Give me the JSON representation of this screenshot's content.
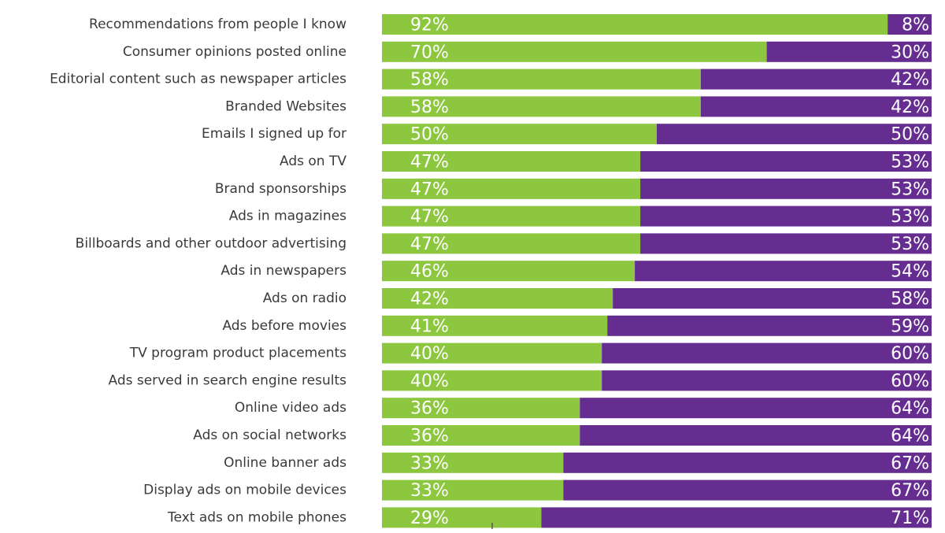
{
  "chart_data": {
    "type": "bar",
    "orientation": "horizontal",
    "stacked": true,
    "value_format": "{v}%",
    "xlim": [
      0,
      100
    ],
    "grid": false,
    "legend": "none",
    "categories": [
      "Recommendations from people I know",
      "Consumer opinions posted online",
      "Editorial content such as newspaper articles",
      "Branded Websites",
      "Emails I signed up for",
      "Ads on TV",
      "Brand sponsorships",
      "Ads in magazines",
      "Billboards and other outdoor advertising",
      "Ads in newspapers",
      "Ads on radio",
      "Ads before movies",
      "TV program product placements",
      "Ads served in search engine results",
      "Online video ads",
      "Ads on social networks",
      "Online banner ads",
      "Display ads on mobile devices",
      "Text ads on mobile phones"
    ],
    "series": [
      {
        "color": "#8dc63f",
        "values": [
          92,
          70,
          58,
          58,
          50,
          47,
          47,
          47,
          47,
          46,
          42,
          41,
          40,
          40,
          36,
          36,
          33,
          33,
          29
        ]
      },
      {
        "color": "#662d91",
        "values": [
          8,
          30,
          42,
          42,
          50,
          53,
          53,
          53,
          53,
          54,
          58,
          59,
          60,
          60,
          64,
          64,
          67,
          67,
          71
        ]
      }
    ]
  }
}
